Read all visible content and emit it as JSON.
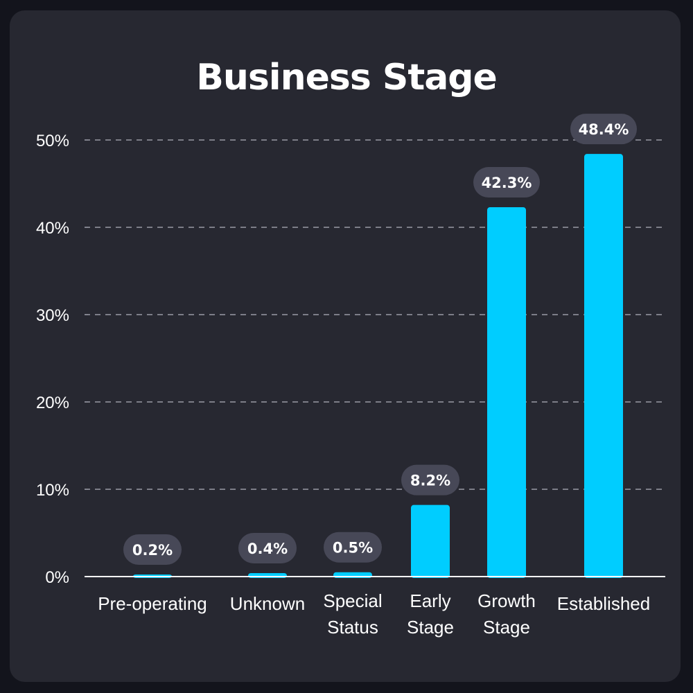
{
  "chart_data": {
    "type": "bar",
    "title": "Business Stage",
    "categories": [
      "Pre-operating",
      "Unknown",
      "Special Status",
      "Early Stage",
      "Growth Stage",
      "Established"
    ],
    "category_lines": [
      [
        "Pre-operating"
      ],
      [
        "Unknown"
      ],
      [
        "Special",
        "Status"
      ],
      [
        "Early",
        "Stage"
      ],
      [
        "Growth",
        "Stage"
      ],
      [
        "Established"
      ]
    ],
    "values": [
      0.2,
      0.4,
      0.5,
      8.2,
      42.3,
      48.4
    ],
    "data_labels": [
      "0.2%",
      "0.4%",
      "0.5%",
      "8.2%",
      "42.3%",
      "48.4%"
    ],
    "yticks": [
      0,
      10,
      20,
      30,
      40,
      50
    ],
    "ytick_labels": [
      "0%",
      "10%",
      "20%",
      "30%",
      "40%",
      "50%"
    ],
    "ylim": [
      0,
      50
    ],
    "grid": true,
    "grid_style": "dashed",
    "xlabel": "",
    "ylabel": "",
    "colors": {
      "bar": "#00cdff",
      "label_bubble": "#474857",
      "grid": "#9a9aa6",
      "axis": "#ffffff",
      "card": "#272831",
      "background": "#13141c",
      "text": "#ffffff"
    }
  }
}
